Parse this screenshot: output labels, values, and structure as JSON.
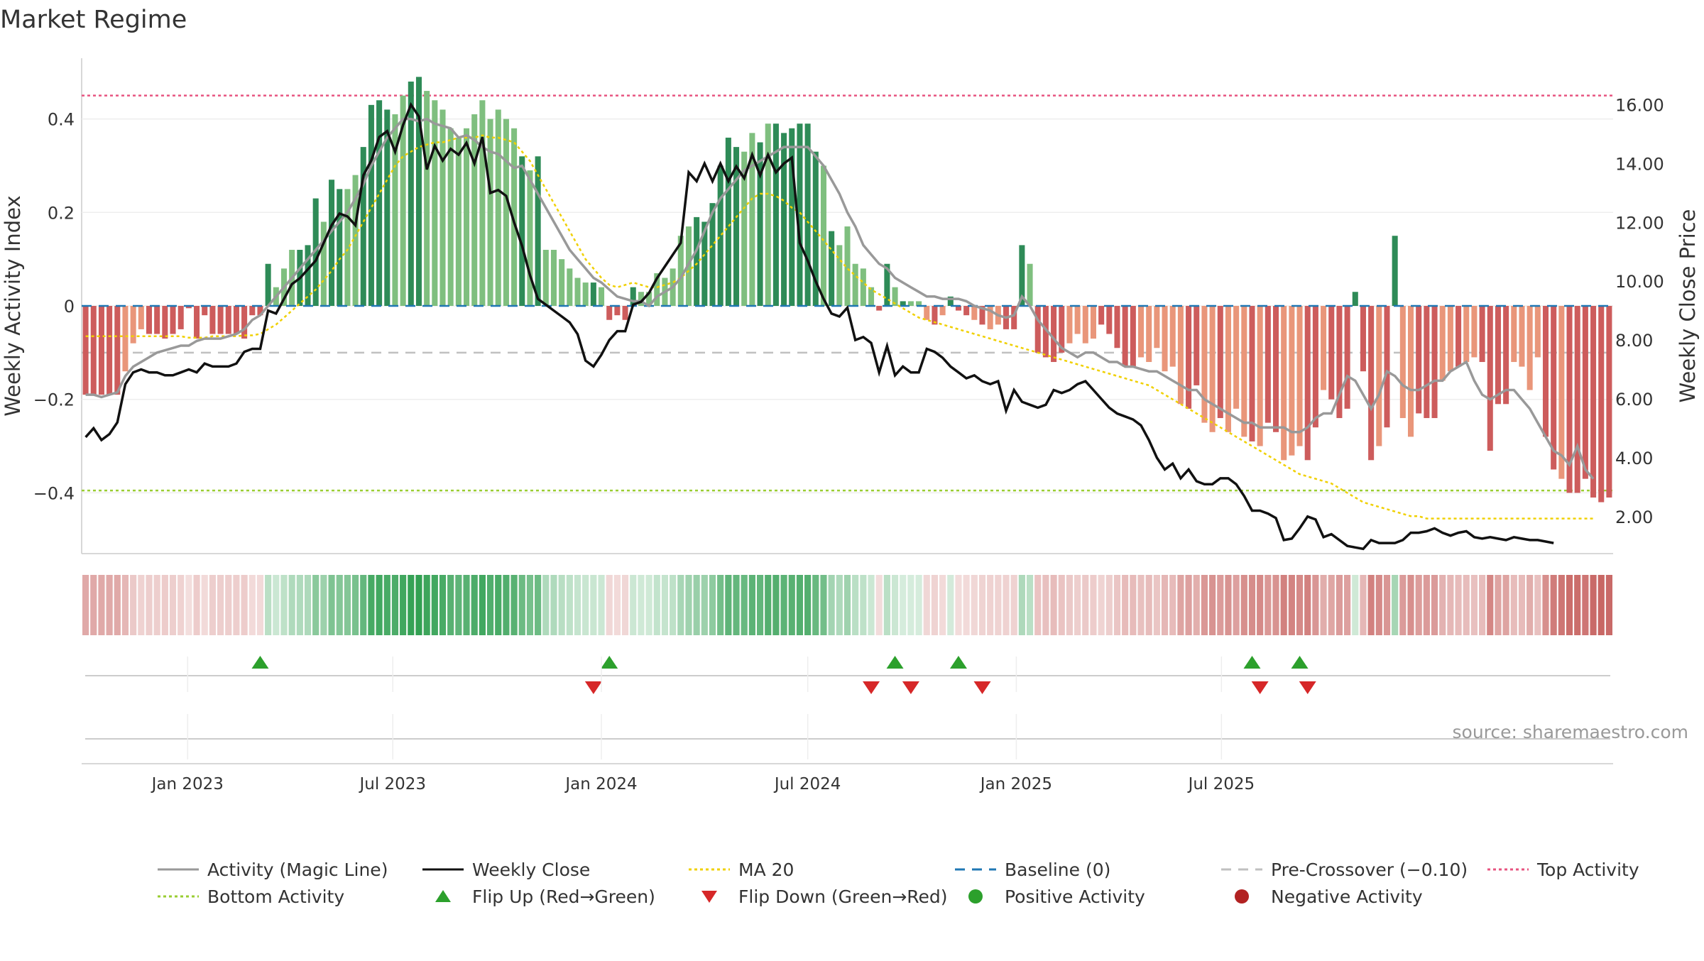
{
  "title": "Market Regime",
  "source_label": "source: sharemaestro.com",
  "colors": {
    "green_strong": "#2e8b57",
    "green_light": "#7fbf7f",
    "red_strong": "#cd5c5c",
    "red_light": "#e9967a",
    "magic_line": "#999999",
    "close_line": "#111111",
    "ma20": "#f0d000",
    "baseline": "#1f77b4",
    "pre_crossover": "#c0c0c0",
    "top_activity": "#e75480",
    "bottom_activity": "#9acd32",
    "flip_up": "#2ca02c",
    "flip_down": "#d62728"
  },
  "chart_data": {
    "type": "bar",
    "title": "Market Regime",
    "x_start": "2022-10-03",
    "x_step_days": 7,
    "x_ticks": [
      "Jan 2023",
      "Jul 2023",
      "Jan 2024",
      "Jul 2024",
      "Jan 2025",
      "Jul 2025"
    ],
    "x_tick_dates": [
      "2023-01-01",
      "2023-07-01",
      "2024-01-01",
      "2024-07-01",
      "2025-01-01",
      "2025-07-01"
    ],
    "y_left_label": "Weekly Activity Index",
    "y_left_lim": [
      -0.53,
      0.53
    ],
    "y_left_ticks": [
      -0.4,
      -0.2,
      0,
      0.2,
      0.4
    ],
    "y_left_tick_labels": [
      "−0.4",
      "−0.2",
      "0",
      "0.2",
      "0.4"
    ],
    "y_right_label": "Weekly Close Price",
    "y_right_lim": [
      0.74,
      17.58
    ],
    "y_right_ticks": [
      2,
      4,
      6,
      8,
      10,
      12,
      14,
      16
    ],
    "y_right_tick_labels": [
      "2.00",
      "4.00",
      "6.00",
      "8.00",
      "10.00",
      "12.00",
      "14.00",
      "16.00"
    ],
    "reference_lines": {
      "baseline": 0,
      "pre_crossover": -0.1,
      "top_activity": 0.45,
      "bottom_activity": -0.395
    },
    "activity": [
      -0.19,
      -0.19,
      -0.19,
      -0.19,
      -0.19,
      -0.14,
      -0.08,
      -0.05,
      -0.06,
      -0.06,
      -0.07,
      -0.06,
      -0.05,
      -0.005,
      -0.07,
      -0.02,
      -0.06,
      -0.06,
      -0.06,
      -0.06,
      -0.07,
      -0.02,
      -0.02,
      0.09,
      0.04,
      0.08,
      0.12,
      0.12,
      0.13,
      0.23,
      0.18,
      0.27,
      0.25,
      0.25,
      0.28,
      0.34,
      0.43,
      0.44,
      0.42,
      0.41,
      0.45,
      0.48,
      0.49,
      0.46,
      0.44,
      0.42,
      0.38,
      0.36,
      0.38,
      0.41,
      0.44,
      0.4,
      0.42,
      0.4,
      0.38,
      0.32,
      0.29,
      0.32,
      0.12,
      0.12,
      0.1,
      0.08,
      0.06,
      0.05,
      0.05,
      0.04,
      -0.03,
      -0.02,
      -0.03,
      0.04,
      0.03,
      0.03,
      0.07,
      0.06,
      0.08,
      0.15,
      0.17,
      0.19,
      0.18,
      0.22,
      0.3,
      0.36,
      0.34,
      0.33,
      0.37,
      0.35,
      0.39,
      0.39,
      0.37,
      0.38,
      0.39,
      0.39,
      0.33,
      0.3,
      0.16,
      0.13,
      0.17,
      0.09,
      0.08,
      0.04,
      -0.01,
      0.09,
      0.04,
      0.01,
      0.01,
      0.01,
      -0.03,
      -0.04,
      -0.02,
      0.02,
      -0.01,
      -0.02,
      -0.03,
      -0.04,
      -0.05,
      -0.04,
      -0.05,
      -0.05,
      0.13,
      0.09,
      -0.1,
      -0.11,
      -0.12,
      -0.1,
      -0.08,
      -0.06,
      -0.08,
      -0.07,
      -0.04,
      -0.06,
      -0.09,
      -0.13,
      -0.13,
      -0.11,
      -0.12,
      -0.09,
      -0.14,
      -0.13,
      -0.21,
      -0.22,
      -0.17,
      -0.25,
      -0.27,
      -0.24,
      -0.27,
      -0.22,
      -0.28,
      -0.29,
      -0.3,
      -0.25,
      -0.27,
      -0.33,
      -0.32,
      -0.3,
      -0.33,
      -0.26,
      -0.18,
      -0.2,
      -0.24,
      -0.22,
      0.03,
      -0.14,
      -0.33,
      -0.3,
      -0.26,
      0.15,
      -0.24,
      -0.28,
      -0.23,
      -0.24,
      -0.24,
      -0.16,
      -0.14,
      -0.13,
      -0.12,
      -0.11,
      -0.12,
      -0.31,
      -0.21,
      -0.21,
      -0.12,
      -0.13,
      -0.18,
      -0.11,
      -0.28,
      -0.35,
      -0.37,
      -0.4,
      -0.4,
      -0.37,
      -0.41,
      -0.42,
      -0.41
    ],
    "activity_style": [
      "s",
      "s",
      "s",
      "s",
      "s",
      "l",
      "l",
      "l",
      "s",
      "s",
      "s",
      "s",
      "s",
      "s",
      "s",
      "s",
      "s",
      "s",
      "s",
      "s",
      "s",
      "s",
      "s",
      "s",
      "l",
      "l",
      "l",
      "s",
      "s",
      "s",
      "l",
      "s",
      "s",
      "l",
      "l",
      "s",
      "s",
      "s",
      "s",
      "l",
      "l",
      "s",
      "s",
      "l",
      "l",
      "l",
      "l",
      "l",
      "l",
      "l",
      "l",
      "l",
      "l",
      "l",
      "l",
      "s",
      "l",
      "s",
      "l",
      "l",
      "l",
      "l",
      "l",
      "l",
      "s",
      "l",
      "s",
      "s",
      "s",
      "s",
      "l",
      "l",
      "l",
      "l",
      "l",
      "l",
      "l",
      "s",
      "s",
      "s",
      "s",
      "s",
      "s",
      "l",
      "l",
      "s",
      "l",
      "s",
      "s",
      "s",
      "s",
      "s",
      "s",
      "l",
      "s",
      "l",
      "l",
      "l",
      "l",
      "l",
      "s",
      "s",
      "l",
      "s",
      "l",
      "l",
      "l",
      "s",
      "l",
      "s",
      "s",
      "s",
      "l",
      "s",
      "l",
      "l",
      "s",
      "s",
      "s",
      "l",
      "s",
      "s",
      "s",
      "s",
      "l",
      "l",
      "l",
      "l",
      "s",
      "s",
      "s",
      "s",
      "s",
      "l",
      "l",
      "l",
      "l",
      "l",
      "l",
      "s",
      "s",
      "l",
      "l",
      "s",
      "l",
      "l",
      "l",
      "s",
      "l",
      "s",
      "s",
      "l",
      "l",
      "l",
      "s",
      "s",
      "l",
      "s",
      "s",
      "s",
      "s",
      "s",
      "s",
      "l",
      "s",
      "s",
      "l",
      "l",
      "s",
      "s",
      "s",
      "l",
      "l",
      "s",
      "l",
      "l",
      "s",
      "s",
      "s",
      "s",
      "l",
      "l",
      "l",
      "l",
      "s",
      "s",
      "l",
      "s",
      "s",
      "s",
      "s",
      "s",
      "s",
      "s",
      "s",
      "l",
      "l",
      "l",
      "l"
    ],
    "magic_line": [
      -0.19,
      -0.19,
      -0.195,
      -0.19,
      -0.185,
      -0.15,
      -0.13,
      -0.12,
      -0.11,
      -0.1,
      -0.095,
      -0.09,
      -0.085,
      -0.085,
      -0.075,
      -0.07,
      -0.07,
      -0.07,
      -0.065,
      -0.06,
      -0.05,
      -0.03,
      -0.02,
      0.0,
      0.02,
      0.04,
      0.06,
      0.08,
      0.1,
      0.12,
      0.14,
      0.16,
      0.18,
      0.2,
      0.23,
      0.26,
      0.3,
      0.33,
      0.36,
      0.38,
      0.4,
      0.4,
      0.395,
      0.4,
      0.39,
      0.385,
      0.38,
      0.36,
      0.365,
      0.355,
      0.34,
      0.33,
      0.325,
      0.31,
      0.295,
      0.3,
      0.27,
      0.24,
      0.21,
      0.18,
      0.15,
      0.12,
      0.1,
      0.08,
      0.06,
      0.05,
      0.035,
      0.02,
      0.015,
      0.01,
      0.01,
      0.0,
      0.02,
      0.03,
      0.04,
      0.06,
      0.09,
      0.12,
      0.16,
      0.2,
      0.23,
      0.25,
      0.27,
      0.29,
      0.3,
      0.31,
      0.32,
      0.33,
      0.34,
      0.34,
      0.34,
      0.34,
      0.32,
      0.3,
      0.27,
      0.24,
      0.2,
      0.17,
      0.13,
      0.11,
      0.09,
      0.08,
      0.06,
      0.05,
      0.04,
      0.03,
      0.02,
      0.02,
      0.015,
      0.015,
      0.015,
      0.01,
      0.0,
      -0.005,
      -0.01,
      -0.02,
      -0.025,
      -0.02,
      0.02,
      0.0,
      -0.03,
      -0.05,
      -0.07,
      -0.09,
      -0.1,
      -0.11,
      -0.1,
      -0.1,
      -0.11,
      -0.12,
      -0.12,
      -0.13,
      -0.13,
      -0.135,
      -0.14,
      -0.14,
      -0.15,
      -0.16,
      -0.17,
      -0.18,
      -0.18,
      -0.2,
      -0.21,
      -0.22,
      -0.23,
      -0.24,
      -0.25,
      -0.25,
      -0.26,
      -0.26,
      -0.26,
      -0.26,
      -0.27,
      -0.27,
      -0.26,
      -0.24,
      -0.23,
      -0.23,
      -0.19,
      -0.15,
      -0.16,
      -0.19,
      -0.22,
      -0.19,
      -0.14,
      -0.15,
      -0.17,
      -0.18,
      -0.18,
      -0.17,
      -0.16,
      -0.16,
      -0.14,
      -0.13,
      -0.12,
      -0.16,
      -0.19,
      -0.2,
      -0.19,
      -0.18,
      -0.18,
      -0.2,
      -0.22,
      -0.25,
      -0.28,
      -0.31,
      -0.32,
      -0.34,
      -0.3,
      -0.35,
      -0.37
    ],
    "close": [
      4.7,
      5.0,
      4.6,
      4.8,
      5.2,
      6.5,
      6.9,
      7.0,
      6.9,
      6.9,
      6.8,
      6.8,
      6.9,
      7.0,
      6.9,
      7.2,
      7.1,
      7.1,
      7.1,
      7.2,
      7.6,
      7.7,
      7.7,
      9.0,
      8.9,
      9.4,
      9.9,
      10.1,
      10.4,
      10.7,
      11.3,
      11.9,
      12.3,
      12.2,
      11.9,
      13.6,
      14.1,
      14.9,
      15.1,
      14.4,
      15.3,
      16.0,
      15.6,
      13.8,
      14.6,
      14.1,
      14.5,
      14.3,
      14.7,
      14.0,
      14.9,
      13.0,
      13.1,
      12.9,
      12.0,
      11.2,
      10.2,
      9.4,
      9.2,
      9.0,
      8.8,
      8.6,
      8.2,
      7.3,
      7.1,
      7.5,
      8.0,
      8.3,
      8.3,
      9.2,
      9.3,
      9.6,
      10.1,
      10.5,
      10.9,
      11.3,
      13.7,
      13.4,
      14.0,
      13.4,
      14.0,
      13.4,
      13.9,
      13.5,
      14.3,
      13.6,
      14.3,
      13.7,
      14.0,
      14.2,
      11.3,
      10.7,
      10.0,
      9.4,
      8.9,
      8.8,
      9.1,
      8.0,
      8.1,
      7.9,
      6.9,
      7.8,
      6.8,
      7.1,
      6.9,
      6.9,
      7.7,
      7.6,
      7.4,
      7.1,
      6.9,
      6.7,
      6.8,
      6.6,
      6.5,
      6.6,
      5.6,
      6.3,
      5.9,
      5.8,
      5.7,
      5.8,
      6.3,
      6.2,
      6.3,
      6.5,
      6.6,
      6.3,
      6.0,
      5.7,
      5.5,
      5.4,
      5.3,
      5.1,
      4.6,
      4.0,
      3.6,
      3.8,
      3.3,
      3.6,
      3.2,
      3.1,
      3.1,
      3.3,
      3.3,
      3.1,
      2.7,
      2.2,
      2.2,
      2.1,
      1.95,
      1.2,
      1.25,
      1.6,
      2.0,
      1.9,
      1.3,
      1.4,
      1.2,
      1.0,
      0.95,
      0.9,
      1.2,
      1.1,
      1.1,
      1.1,
      1.2,
      1.45,
      1.45,
      1.5,
      1.6,
      1.45,
      1.35,
      1.45,
      1.5,
      1.3,
      1.25,
      1.3,
      1.25,
      1.2,
      1.3,
      1.25,
      1.2,
      1.2,
      1.15,
      1.1
    ],
    "ma20": [
      -0.065,
      -0.065,
      -0.065,
      -0.065,
      -0.065,
      -0.065,
      -0.065,
      -0.065,
      -0.065,
      -0.065,
      -0.065,
      -0.065,
      -0.065,
      -0.068,
      -0.068,
      -0.068,
      -0.065,
      -0.065,
      -0.065,
      -0.065,
      -0.063,
      -0.063,
      -0.06,
      -0.05,
      -0.04,
      -0.025,
      -0.01,
      0.005,
      0.02,
      0.035,
      0.055,
      0.075,
      0.1,
      0.12,
      0.15,
      0.18,
      0.21,
      0.24,
      0.27,
      0.3,
      0.32,
      0.33,
      0.34,
      0.345,
      0.35,
      0.35,
      0.355,
      0.36,
      0.36,
      0.36,
      0.365,
      0.36,
      0.36,
      0.355,
      0.35,
      0.33,
      0.31,
      0.28,
      0.25,
      0.22,
      0.19,
      0.16,
      0.13,
      0.1,
      0.08,
      0.06,
      0.045,
      0.04,
      0.045,
      0.05,
      0.045,
      0.04,
      0.04,
      0.045,
      0.05,
      0.06,
      0.075,
      0.09,
      0.11,
      0.13,
      0.15,
      0.17,
      0.19,
      0.21,
      0.23,
      0.24,
      0.24,
      0.235,
      0.225,
      0.21,
      0.2,
      0.18,
      0.16,
      0.14,
      0.12,
      0.1,
      0.08,
      0.065,
      0.05,
      0.035,
      0.025,
      0.015,
      0.005,
      -0.005,
      -0.015,
      -0.025,
      -0.03,
      -0.035,
      -0.04,
      -0.045,
      -0.05,
      -0.055,
      -0.06,
      -0.065,
      -0.07,
      -0.075,
      -0.08,
      -0.085,
      -0.09,
      -0.095,
      -0.1,
      -0.105,
      -0.11,
      -0.115,
      -0.12,
      -0.125,
      -0.13,
      -0.135,
      -0.14,
      -0.145,
      -0.15,
      -0.155,
      -0.16,
      -0.165,
      -0.17,
      -0.18,
      -0.19,
      -0.2,
      -0.21,
      -0.22,
      -0.23,
      -0.24,
      -0.25,
      -0.26,
      -0.27,
      -0.28,
      -0.29,
      -0.3,
      -0.31,
      -0.32,
      -0.33,
      -0.34,
      -0.35,
      -0.36,
      -0.365,
      -0.37,
      -0.375,
      -0.38,
      -0.39,
      -0.4,
      -0.41,
      -0.42,
      -0.425,
      -0.43,
      -0.435,
      -0.44,
      -0.445,
      -0.45,
      -0.45,
      -0.455,
      -0.455,
      -0.455,
      -0.455,
      -0.455,
      -0.455,
      -0.455,
      -0.455,
      -0.455,
      -0.455,
      -0.455,
      -0.455,
      -0.455,
      -0.455,
      -0.455,
      -0.455,
      -0.455,
      -0.455,
      -0.455,
      -0.455,
      -0.455,
      -0.455
    ],
    "flip_up": [
      22,
      66,
      102,
      110,
      147,
      153
    ],
    "flip_down": [
      64,
      99,
      104,
      113,
      148,
      154
    ],
    "legend": [
      {
        "label": "Activity (Magic Line)",
        "kind": "line",
        "color": "#999999",
        "dash": ""
      },
      {
        "label": "Weekly Close",
        "kind": "line",
        "color": "#111111",
        "dash": ""
      },
      {
        "label": "MA 20",
        "kind": "line",
        "color": "#f0d000",
        "dash": "4,4"
      },
      {
        "label": "Baseline (0)",
        "kind": "line",
        "color": "#1f77b4",
        "dash": "14,10"
      },
      {
        "label": "Pre-Crossover (−0.10)",
        "kind": "line",
        "color": "#c0c0c0",
        "dash": "14,10"
      },
      {
        "label": "Top Activity",
        "kind": "line",
        "color": "#e75480",
        "dash": "4,4"
      },
      {
        "label": "Bottom Activity",
        "kind": "line",
        "color": "#9acd32",
        "dash": "4,4"
      },
      {
        "label": "Flip Up (Red→Green)",
        "kind": "up",
        "color": "#2ca02c",
        "dash": ""
      },
      {
        "label": "Flip Down (Green→Red)",
        "kind": "down",
        "color": "#d62728",
        "dash": ""
      },
      {
        "label": "Positive Activity",
        "kind": "dot",
        "color": "#2ca02c",
        "dash": ""
      },
      {
        "label": "Negative Activity",
        "kind": "dot",
        "color": "#b22222",
        "dash": ""
      }
    ],
    "grid": true,
    "legend_position": "bottom"
  }
}
